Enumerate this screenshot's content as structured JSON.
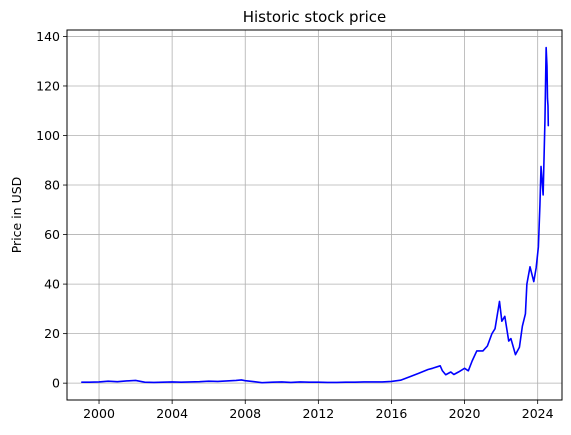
{
  "chart_data": {
    "type": "line",
    "title": "Historic stock price",
    "xlabel": "",
    "ylabel": "Price in USD",
    "xlim": [
      "1998-04-01",
      "2025-05-01"
    ],
    "ylim": [
      -6.8,
      142.6
    ],
    "grid": true,
    "x_ticks": [
      "2000-01-01",
      "2004-01-01",
      "2008-01-01",
      "2012-01-01",
      "2016-01-01",
      "2020-01-01",
      "2024-01-01"
    ],
    "x_tick_labels": [
      "2000",
      "2004",
      "2008",
      "2012",
      "2016",
      "2020",
      "2024"
    ],
    "y_ticks": [
      0,
      20,
      40,
      60,
      80,
      100,
      120,
      140
    ],
    "y_tick_labels": [
      "0",
      "20",
      "40",
      "60",
      "80",
      "100",
      "120",
      "140"
    ],
    "series": [
      {
        "color": "#0000ff",
        "points": [
          [
            "1999-01-22",
            0.4
          ],
          [
            "1999-07-01",
            0.4
          ],
          [
            "2000-01-01",
            0.5
          ],
          [
            "2000-07-01",
            0.8
          ],
          [
            "2001-01-01",
            0.6
          ],
          [
            "2001-07-01",
            0.9
          ],
          [
            "2002-01-01",
            1.1
          ],
          [
            "2002-07-01",
            0.4
          ],
          [
            "2003-01-01",
            0.3
          ],
          [
            "2003-07-01",
            0.4
          ],
          [
            "2004-01-01",
            0.5
          ],
          [
            "2004-07-01",
            0.4
          ],
          [
            "2005-01-01",
            0.5
          ],
          [
            "2005-07-01",
            0.6
          ],
          [
            "2006-01-01",
            0.8
          ],
          [
            "2006-07-01",
            0.7
          ],
          [
            "2007-01-01",
            0.9
          ],
          [
            "2007-07-01",
            1.1
          ],
          [
            "2007-10-15",
            1.3
          ],
          [
            "2008-01-01",
            1.0
          ],
          [
            "2008-07-01",
            0.6
          ],
          [
            "2008-12-01",
            0.2
          ],
          [
            "2009-07-01",
            0.4
          ],
          [
            "2010-01-01",
            0.5
          ],
          [
            "2010-07-01",
            0.3
          ],
          [
            "2011-01-01",
            0.5
          ],
          [
            "2011-07-01",
            0.4
          ],
          [
            "2012-01-01",
            0.4
          ],
          [
            "2012-07-01",
            0.3
          ],
          [
            "2013-01-01",
            0.3
          ],
          [
            "2013-07-01",
            0.4
          ],
          [
            "2014-01-01",
            0.4
          ],
          [
            "2014-07-01",
            0.5
          ],
          [
            "2015-01-01",
            0.5
          ],
          [
            "2015-07-01",
            0.5
          ],
          [
            "2016-01-01",
            0.7
          ],
          [
            "2016-07-01",
            1.2
          ],
          [
            "2017-01-01",
            2.6
          ],
          [
            "2017-07-01",
            4.0
          ],
          [
            "2018-01-01",
            5.5
          ],
          [
            "2018-04-01",
            6.0
          ],
          [
            "2018-09-01",
            7.0
          ],
          [
            "2018-10-15",
            5.0
          ],
          [
            "2018-12-20",
            3.4
          ],
          [
            "2019-04-01",
            4.5
          ],
          [
            "2019-06-01",
            3.5
          ],
          [
            "2019-09-01",
            4.5
          ],
          [
            "2020-01-01",
            6.0
          ],
          [
            "2020-03-16",
            5.0
          ],
          [
            "2020-06-01",
            9.0
          ],
          [
            "2020-09-01",
            13.0
          ],
          [
            "2021-01-01",
            13.0
          ],
          [
            "2021-04-01",
            15.0
          ],
          [
            "2021-07-01",
            20.0
          ],
          [
            "2021-09-01",
            22.0
          ],
          [
            "2021-11-29",
            33.0
          ],
          [
            "2022-01-15",
            25.0
          ],
          [
            "2022-03-15",
            27.0
          ],
          [
            "2022-06-01",
            17.0
          ],
          [
            "2022-07-15",
            18.0
          ],
          [
            "2022-10-14",
            11.5
          ],
          [
            "2023-01-01",
            14.5
          ],
          [
            "2023-03-01",
            23.0
          ],
          [
            "2023-05-01",
            28.0
          ],
          [
            "2023-05-30",
            40.0
          ],
          [
            "2023-08-01",
            47.0
          ],
          [
            "2023-10-15",
            41.0
          ],
          [
            "2023-12-01",
            46.5
          ],
          [
            "2024-01-15",
            55.0
          ],
          [
            "2024-02-15",
            72.0
          ],
          [
            "2024-03-08",
            87.5
          ],
          [
            "2024-04-19",
            76.0
          ],
          [
            "2024-05-25",
            106.0
          ],
          [
            "2024-06-18",
            135.5
          ],
          [
            "2024-07-05",
            128.0
          ],
          [
            "2024-07-15",
            115.0
          ],
          [
            "2024-07-25",
            112.0
          ],
          [
            "2024-07-31",
            104.0
          ]
        ]
      }
    ]
  }
}
